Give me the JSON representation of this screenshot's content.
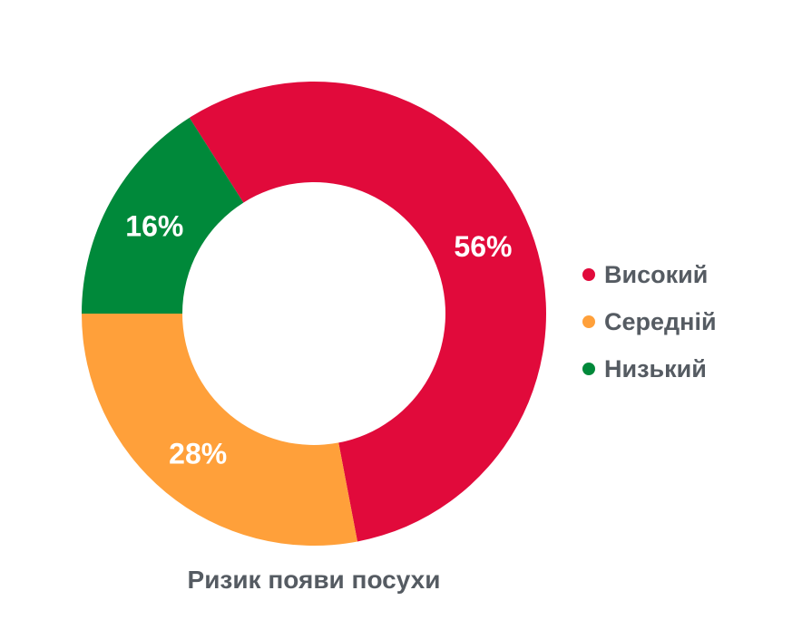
{
  "chart_data": {
    "type": "pie",
    "variant": "donut",
    "categories": [
      "Високий",
      "Середній",
      "Низький"
    ],
    "values": [
      56,
      28,
      16
    ],
    "labels": [
      "56%",
      "28%",
      "16%"
    ],
    "colors": [
      "#E10A3B",
      "#FFA03A",
      "#00893A"
    ],
    "title": "",
    "caption": "Ризик появи посухи",
    "legend_position": "right"
  }
}
